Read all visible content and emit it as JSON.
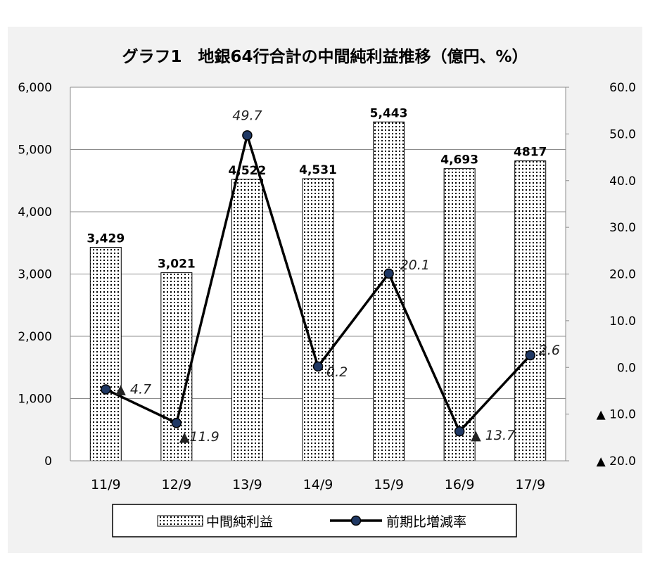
{
  "chart_data": {
    "type": "bar+line",
    "title": "グラフ1　地銀64行合計の中間純利益推移（億円、%）",
    "categories": [
      "11/9",
      "12/9",
      "13/9",
      "14/9",
      "15/9",
      "16/9",
      "17/9"
    ],
    "series": [
      {
        "name": "中間純利益",
        "type": "bar",
        "axis": "left",
        "values": [
          3429,
          3021,
          4522,
          4531,
          5443,
          4693,
          4817
        ],
        "labels": [
          "3,429",
          "3,021",
          "4,522",
          "4,531",
          "5,443",
          "4,693",
          "4817"
        ]
      },
      {
        "name": "前期比増減率",
        "type": "line",
        "axis": "right",
        "values": [
          -4.7,
          -11.9,
          49.7,
          0.2,
          20.1,
          -13.7,
          2.6
        ],
        "labels": [
          "▲ 4.7",
          "▲11.9",
          "49.7",
          "0.2",
          "20.1",
          "▲ 13.7",
          "2.6"
        ]
      }
    ],
    "y_left": {
      "range": [
        0,
        6000
      ],
      "ticks": [
        0,
        1000,
        2000,
        3000,
        4000,
        5000,
        6000
      ],
      "tick_labels": [
        "0",
        "1,000",
        "2,000",
        "3,000",
        "4,000",
        "5,000",
        "6,000"
      ]
    },
    "y_right": {
      "range": [
        -20,
        60
      ],
      "ticks": [
        -20,
        -10,
        0,
        10,
        20,
        30,
        40,
        50,
        60
      ],
      "tick_labels": [
        "▲ 20.0",
        "▲ 10.0",
        "0.0",
        "10.0",
        "20.0",
        "30.0",
        "40.0",
        "50.0",
        "60.0"
      ]
    },
    "grid": true,
    "legend": "bottom",
    "colors": {
      "bar_dots": "#000000",
      "line": "#000000",
      "marker_fill": "#1f3864",
      "background": "#f2f2f2"
    }
  }
}
